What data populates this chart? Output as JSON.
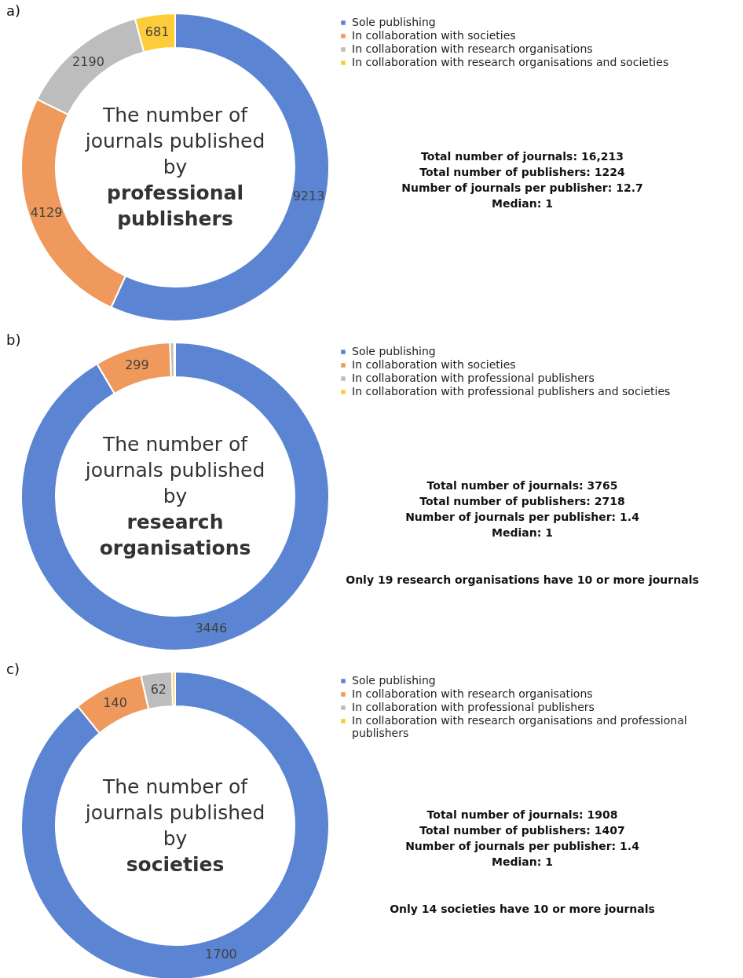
{
  "chart_data": [
    {
      "type": "donut",
      "title": "The number of journals published by",
      "subtitle": "professional publishers",
      "categories": [
        "Sole publishing",
        "In collaboration with societies",
        "In collaboration with research organisations",
        "In collaboration with research organisations and societies"
      ],
      "values": [
        9213,
        4129,
        2190,
        681
      ],
      "colors": [
        "#5b85d3",
        "#ef9a5c",
        "#bdbdbd",
        "#fdcc3a"
      ],
      "data_labels": true,
      "legend": "right",
      "annotations": [
        "a)",
        "Total number of journals: 16,213",
        "Total number of publishers: 1224",
        "Number of journals per publisher:  12.7",
        "Median: 1"
      ]
    },
    {
      "type": "donut",
      "title": "The number of journals published by",
      "subtitle": "research organisations",
      "categories": [
        "Sole publishing",
        "In collaboration with societies",
        "In collaboration with professional publishers",
        "In collaboration with professional publishers and societies"
      ],
      "values": [
        3446,
        299,
        16,
        4
      ],
      "colors": [
        "#5b85d3",
        "#ef9a5c",
        "#bdbdbd",
        "#fdcc3a"
      ],
      "value_labels": [
        "3446",
        "299",
        null,
        null
      ],
      "legend": "right",
      "annotations": [
        "b)",
        "Total number of journals: 3765",
        "Total number of publishers: 2718",
        "Number of journals per publisher:  1.4",
        "Median: 1",
        "Only 19 research organisations have 10 or more journals"
      ]
    },
    {
      "type": "donut",
      "title": "The number of journals published by",
      "subtitle": "societies",
      "categories": [
        "Sole publishing",
        "In collaboration with research organisations",
        "In collaboration with professional publishers",
        "In collaboration with research organisations and professional publishers"
      ],
      "values": [
        1700,
        140,
        62,
        6
      ],
      "colors": [
        "#5b85d3",
        "#ef9a5c",
        "#bdbdbd",
        "#fdcc3a"
      ],
      "value_labels": [
        "1700",
        "140",
        "62",
        null
      ],
      "legend": "right",
      "annotations": [
        "c)",
        "Total number of journals: 1908",
        "Total number of publishers: 1407",
        "Number of journals per publisher:  1.4",
        "Median: 1",
        "Only 14 societies have 10 or more journals"
      ]
    }
  ]
}
